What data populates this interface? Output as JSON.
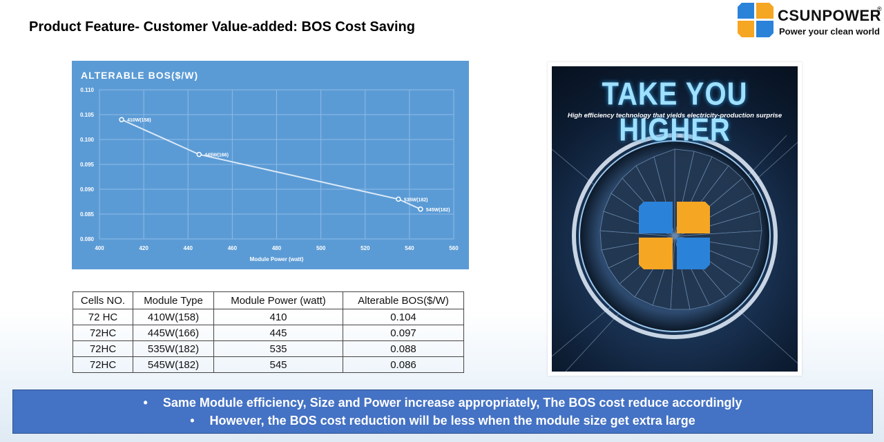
{
  "page": {
    "title": "Product Feature- Customer Value-added: BOS Cost Saving"
  },
  "logo": {
    "name": "CSUNPOWER",
    "registered": "®",
    "tagline": "Power your clean world"
  },
  "chart_data": {
    "type": "line",
    "title": "ALTERABLE BOS($/W)",
    "xlabel": "Module Power (watt)",
    "ylabel": "",
    "xlim": [
      400,
      560
    ],
    "ylim": [
      0.08,
      0.11
    ],
    "x_ticks": [
      "400",
      "420",
      "440",
      "460",
      "480",
      "500",
      "520",
      "540",
      "560"
    ],
    "y_ticks": [
      "0.080",
      "0.085",
      "0.090",
      "0.095",
      "0.100",
      "0.105",
      "0.110"
    ],
    "grid": true,
    "series": [
      {
        "points": [
          {
            "x": 410,
            "y": 0.104,
            "label": "410W(158)"
          },
          {
            "x": 445,
            "y": 0.097,
            "label": "445W(166)"
          },
          {
            "x": 535,
            "y": 0.088,
            "label": "535W(182)"
          },
          {
            "x": 545,
            "y": 0.086,
            "label": "545W(182)"
          }
        ]
      }
    ]
  },
  "table": {
    "headers": [
      "Cells NO.",
      "Module Type",
      "Module Power (watt)",
      "Alterable BOS($/W)"
    ],
    "rows": [
      [
        "72 HC",
        "410W(158)",
        "410",
        "0.104"
      ],
      [
        "72HC",
        "445W(166)",
        "445",
        "0.097"
      ],
      [
        "72HC",
        "535W(182)",
        "535",
        "0.088"
      ],
      [
        "72HC",
        "545W(182)",
        "545",
        "0.086"
      ]
    ]
  },
  "poster": {
    "title": "TAKE YOU HIGHER",
    "subtitle": "High efficiency technology that yields electricity-production surprise"
  },
  "banner": {
    "bullet": "•",
    "lines": [
      "Same Module efficiency, Size and Power increase appropriately, The BOS cost reduce accordingly",
      "However, the BOS cost reduction will be less when the module size get extra large"
    ]
  },
  "colors": {
    "chart_bg": "#5b9bd5",
    "banner_bg": "#4472c4",
    "logo_blue": "#2b82d9",
    "logo_orange": "#f5a623"
  }
}
